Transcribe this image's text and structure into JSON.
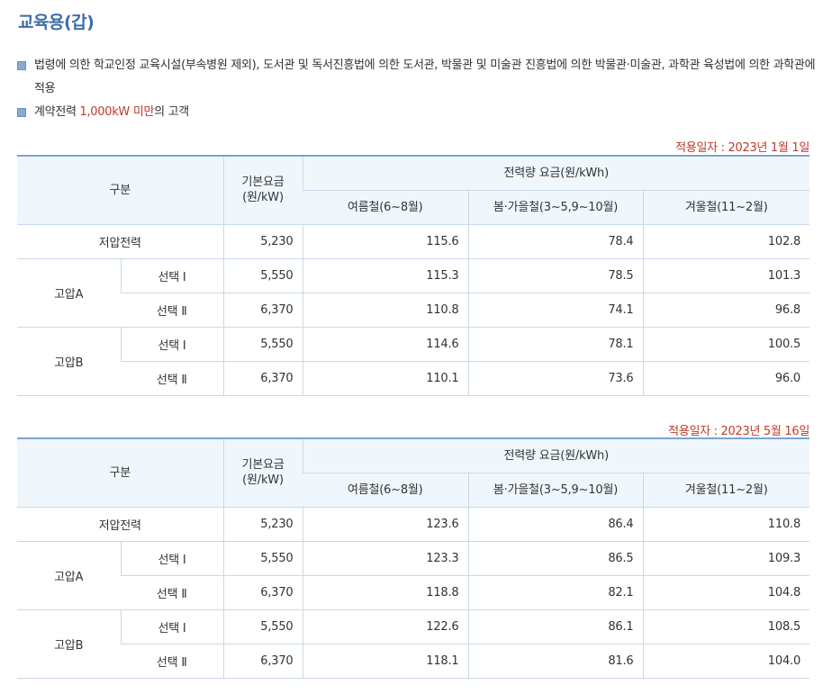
{
  "title": "교육용(갑)",
  "bullets": [
    {
      "parts": [
        {
          "text": "법령에 의한 학교인정 교육시설(부속병원 제외), 도서관 및 독서진흥법에 의한 도서관, 박물관 및 미술관 진흥법에 의한 박물관·미술관, 과학관 육성법에 의한 과학관에 적용"
        }
      ]
    },
    {
      "pre": "계약전력 ",
      "hl": "1,000kW 미만",
      "post": "의 고객"
    }
  ],
  "headers": {
    "category": "구분",
    "base_fee": "기본요금\n(원/kW)",
    "energy_fee": "전력량 요금(원/kWh)",
    "summer": "여름철(6~8월)",
    "spring_fall": "봄·가을철(3~5,9~10월)",
    "winter": "겨울철(11~2월)"
  },
  "labels": {
    "low_voltage": "저압전력",
    "high_a": "고압A",
    "high_b": "고압B",
    "option1": "선택 Ⅰ",
    "option2": "선택 Ⅱ"
  },
  "tables": [
    {
      "effective_date": "적용일자 : 2023년 1월 1일",
      "rows": {
        "low": [
          "5,230",
          "115.6",
          "78.4",
          "102.8"
        ],
        "a1": [
          "5,550",
          "115.3",
          "78.5",
          "101.3"
        ],
        "a2": [
          "6,370",
          "110.8",
          "74.1",
          "96.8"
        ],
        "b1": [
          "5,550",
          "114.6",
          "78.1",
          "100.5"
        ],
        "b2": [
          "6,370",
          "110.1",
          "73.6",
          "96.0"
        ]
      }
    },
    {
      "effective_date": "적용일자 : 2023년 5월 16일",
      "rows": {
        "low": [
          "5,230",
          "123.6",
          "86.4",
          "110.8"
        ],
        "a1": [
          "5,550",
          "123.3",
          "86.5",
          "109.3"
        ],
        "a2": [
          "6,370",
          "118.8",
          "82.1",
          "104.8"
        ],
        "b1": [
          "5,550",
          "122.6",
          "86.1",
          "108.5"
        ],
        "b2": [
          "6,370",
          "118.1",
          "81.6",
          "104.0"
        ]
      }
    }
  ]
}
